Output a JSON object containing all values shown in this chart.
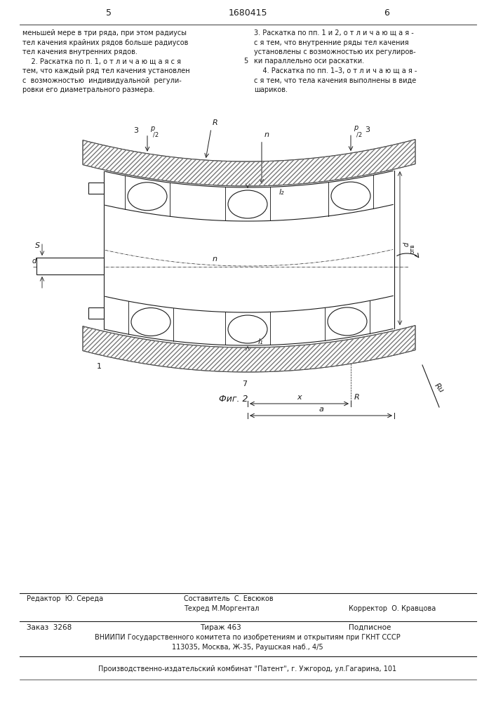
{
  "page_width": 7.07,
  "page_height": 10.0,
  "bg_color": "#ffffff",
  "line_color": "#1a1a1a",
  "fig_caption": "Фиг. 2",
  "col1_text_lines": [
    "меньшей мере в три ряда, при этом радиусы",
    "тел качения крайних рядов больше радиусов",
    "тел качения внутренних рядов.",
    "    2. Раскатка по п. 1, о т л и ч а ю щ а я с я",
    "тем, что каждый ряд тел качения установлен",
    "с  возможностью  индивидуальной  регули-",
    "ровки его диаметрального размера."
  ],
  "col2_text_lines": [
    "3. Раскатка по пп. 1 и 2, о т л и ч а ю щ а я -",
    "с я тем, что внутренние ряды тел качения",
    "установлены с возможностью их регулиров-",
    "ки параллельно оси раскатки.",
    "    4. Раскатка по пп. 1–3, о т л и ч а ю щ а я -",
    "с я тем, что тела качения выполнены в виде",
    "шариков."
  ]
}
